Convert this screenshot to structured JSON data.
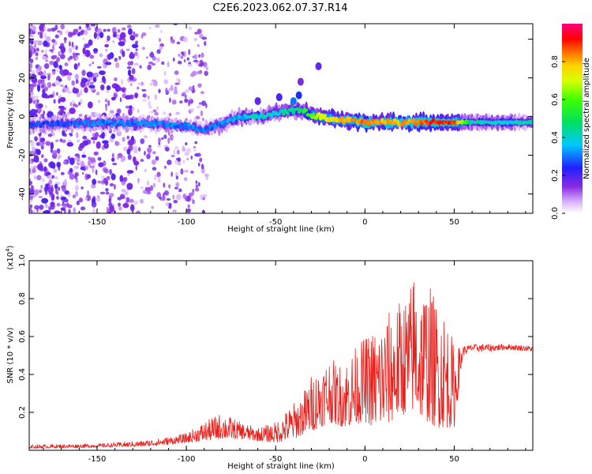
{
  "title": "C2E6.2023.062.07.37.R14",
  "chart_data": [
    {
      "type": "heatmap",
      "xlabel": "Height of straight line (km)",
      "ylabel": "Frequency (Hz)",
      "xlim": [
        -188,
        94
      ],
      "ylim": [
        -50,
        48
      ],
      "xticks": [
        -150,
        -100,
        -50,
        0,
        50
      ],
      "yticks": [
        -40,
        -20,
        0,
        20,
        40
      ],
      "colorbar": {
        "label": "Normalized spectral amplitude",
        "range": [
          0,
          1
        ],
        "ticks": [
          0.0,
          0.2,
          0.4,
          0.6,
          0.8
        ]
      },
      "ridge": {
        "x": [
          -185,
          -150,
          -120,
          -100,
          -90,
          -80,
          -70,
          -60,
          -50,
          -40,
          -35,
          -30,
          -25,
          -20,
          -10,
          0,
          10,
          20,
          30,
          40,
          50,
          60,
          70,
          80,
          94
        ],
        "freq": [
          -4,
          -3.5,
          -3.5,
          -5,
          -7,
          -4,
          0,
          0,
          2,
          3,
          3,
          1,
          0,
          -1,
          -2,
          -3,
          -3,
          -3,
          -3,
          -3,
          -3,
          -3,
          -3,
          -3,
          -3
        ],
        "amplitude": [
          0.25,
          0.3,
          0.3,
          0.3,
          0.3,
          0.3,
          0.35,
          0.4,
          0.4,
          0.45,
          0.5,
          0.6,
          0.7,
          0.75,
          0.8,
          0.85,
          0.8,
          0.8,
          0.85,
          0.9,
          0.9,
          0.4,
          0.4,
          0.4,
          0.4
        ]
      }
    },
    {
      "type": "line",
      "xlabel": "Height of straight line (km)",
      "ylabel": "SNR (10 * v/v)",
      "yscale_note": "(x10",
      "yscale_exp": "4",
      "yscale_close": ")",
      "xlim": [
        -188,
        94
      ],
      "ylim": [
        0,
        1.0
      ],
      "xticks": [
        -150,
        -100,
        -50,
        0,
        50
      ],
      "yticks": [
        0.2,
        0.4,
        0.6,
        0.8,
        1.0
      ],
      "color": "#e8201c",
      "series": [
        {
          "x": [
            -188,
            -150,
            -125,
            -110,
            -100,
            -90,
            -80,
            -70,
            -60,
            -50,
            -40,
            -35,
            -30,
            -25,
            -20,
            -15,
            -10,
            -5,
            0,
            5,
            10,
            15,
            20,
            25,
            28,
            30,
            35,
            40,
            45,
            50,
            55,
            60,
            70,
            80,
            94
          ],
          "base": [
            0.01,
            0.015,
            0.02,
            0.03,
            0.04,
            0.05,
            0.06,
            0.06,
            0.05,
            0.04,
            0.06,
            0.08,
            0.1,
            0.12,
            0.15,
            0.13,
            0.12,
            0.14,
            0.15,
            0.12,
            0.12,
            0.15,
            0.18,
            0.2,
            0.2,
            0.18,
            0.15,
            0.12,
            0.12,
            0.12,
            0.5,
            0.52,
            0.52,
            0.53,
            0.52
          ],
          "peak": [
            0.03,
            0.035,
            0.05,
            0.07,
            0.09,
            0.15,
            0.2,
            0.15,
            0.12,
            0.15,
            0.25,
            0.3,
            0.4,
            0.45,
            0.5,
            0.45,
            0.5,
            0.55,
            0.6,
            0.65,
            0.7,
            0.75,
            0.8,
            0.85,
            1.0,
            0.85,
            0.9,
            0.8,
            0.75,
            0.55,
            0.55,
            0.56,
            0.56,
            0.56,
            0.55
          ]
        }
      ]
    }
  ]
}
